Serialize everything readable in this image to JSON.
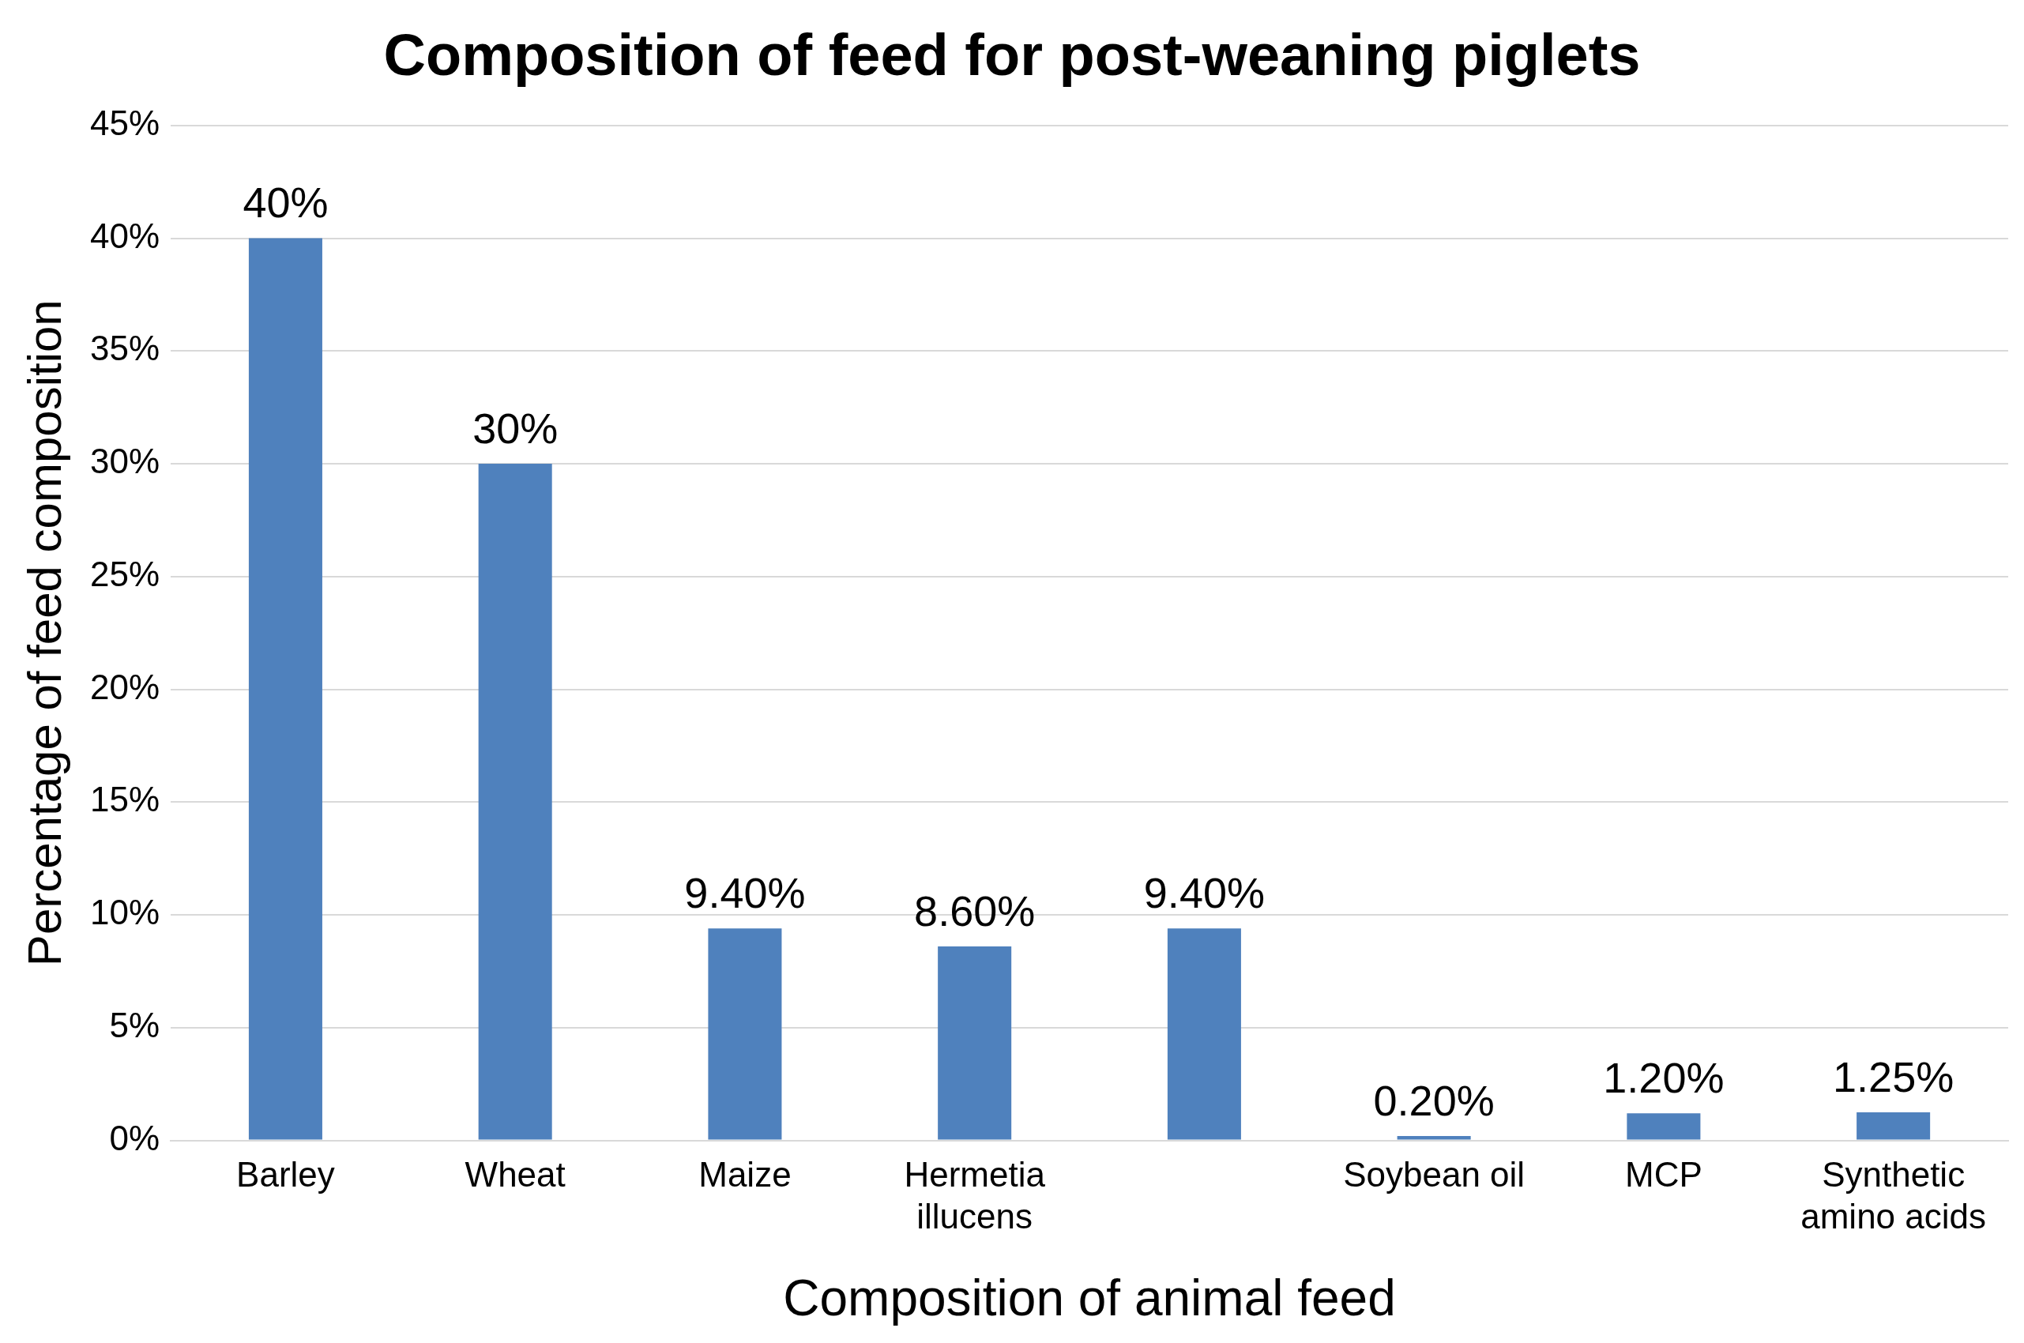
{
  "chart_data": {
    "type": "bar",
    "title": "Composition of feed for post-weaning piglets",
    "xlabel": "Composition of animal feed",
    "ylabel": "Percentage of feed composition",
    "categories": [
      "Barley",
      "Wheat",
      "Maize",
      "Hermetia illucens",
      null,
      "Soybean oil",
      "MCP",
      "Synthetic amino acids"
    ],
    "values": [
      40,
      30,
      9.4,
      8.6,
      9.4,
      0.2,
      1.2,
      1.25
    ],
    "value_labels": [
      "40%",
      "30%",
      "9.40%",
      "8.60%",
      "9.40%",
      "0.20%",
      "1.20%",
      "1.25%"
    ],
    "color": "#4f81bd",
    "ylim": [
      0,
      45
    ],
    "yticks": [
      {
        "value": 0,
        "label": "0%"
      },
      {
        "value": 5,
        "label": "5%"
      },
      {
        "value": 10,
        "label": "10%"
      },
      {
        "value": 15,
        "label": "15%"
      },
      {
        "value": 20,
        "label": "20%"
      },
      {
        "value": 25,
        "label": "25%"
      },
      {
        "value": 30,
        "label": "30%"
      },
      {
        "value": 35,
        "label": "35%"
      },
      {
        "value": 40,
        "label": "40%"
      },
      {
        "value": 45,
        "label": "45%"
      }
    ],
    "grid": "y",
    "legend": false
  }
}
